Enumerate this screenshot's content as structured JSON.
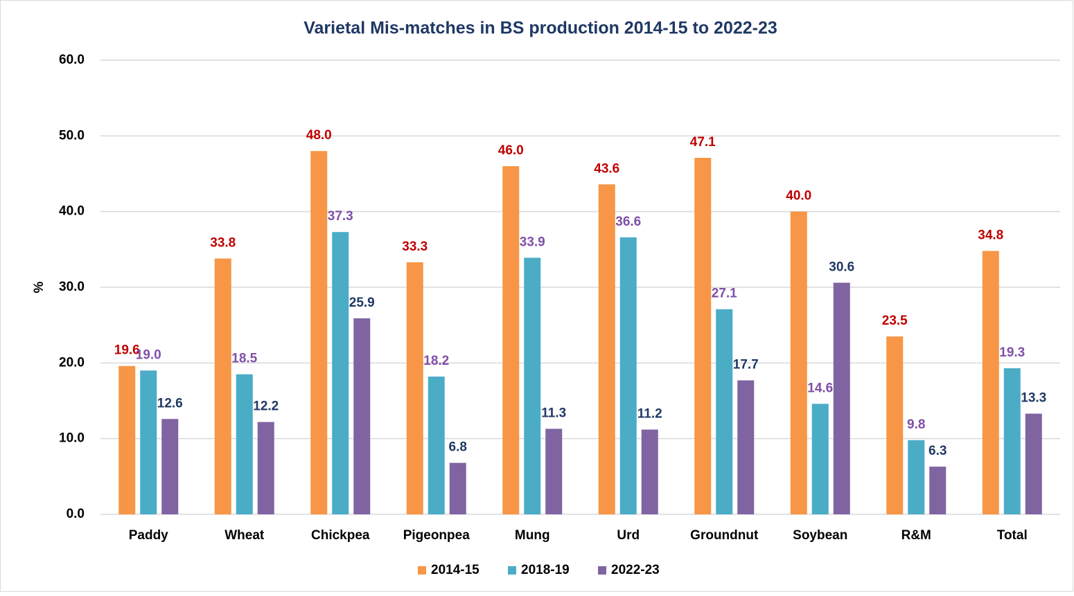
{
  "chart_data": {
    "type": "bar",
    "title": "Varietal Mis-matches in BS production 2014-15 to 2022-23",
    "y_label": "%",
    "categories": [
      "Paddy",
      "Wheat",
      "Chickpea",
      "Pigeonpea",
      "Mung",
      "Urd",
      "Groundnut",
      "Soybean",
      "R&M",
      "Total"
    ],
    "series": [
      {
        "name": "2014-15",
        "color": "#f79646",
        "label_color": "#c00000",
        "values": [
          19.6,
          33.8,
          48.0,
          33.3,
          46.0,
          43.6,
          47.1,
          40.0,
          23.5,
          34.8
        ],
        "value_labels": [
          "19.6",
          "33.8",
          "48.0",
          "33.3",
          "46.0",
          "43.6",
          "47.1",
          "40.0",
          "23.5",
          "34.8"
        ]
      },
      {
        "name": "2018-19",
        "color": "#4bacc6",
        "label_color": "#7f4fa8",
        "values": [
          19.0,
          18.5,
          37.3,
          18.2,
          33.9,
          36.6,
          27.1,
          14.6,
          9.8,
          19.3
        ],
        "value_labels": [
          "19.0",
          "18.5",
          "37.3",
          "18.2",
          "33.9",
          "36.6",
          "27.1",
          "14.6",
          "9.8",
          "19.3"
        ]
      },
      {
        "name": "2022-23",
        "color": "#8064a2",
        "label_color": "#1f3864",
        "values": [
          12.6,
          12.2,
          25.9,
          6.8,
          11.3,
          11.2,
          17.7,
          30.6,
          6.3,
          13.3
        ],
        "value_labels": [
          "12.6",
          "12.2",
          "25.9",
          "6.8",
          "11.3",
          "11.2",
          "17.7",
          "30.6",
          "6.3",
          "13.3"
        ]
      }
    ],
    "ylim": [
      0,
      60
    ],
    "yticks": [
      {
        "value": 0,
        "label": "0.0"
      },
      {
        "value": 10,
        "label": "10.0"
      },
      {
        "value": 20,
        "label": "20.0"
      },
      {
        "value": 30,
        "label": "30.0"
      },
      {
        "value": 40,
        "label": "40.0"
      },
      {
        "value": 50,
        "label": "50.0"
      },
      {
        "value": 60,
        "label": "60.0"
      }
    ],
    "grid": true,
    "legend": "bottom"
  }
}
